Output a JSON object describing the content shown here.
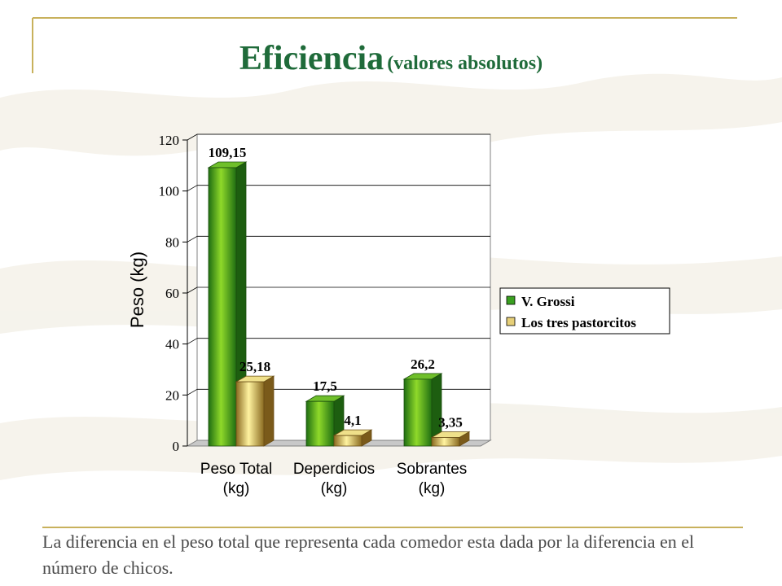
{
  "slide": {
    "title": "Eficiencia",
    "subtitle": "(valores absolutos)",
    "caption": "La diferencia en el peso total que representa cada comedor esta dada por la diferencia en el número de chicos."
  },
  "colors": {
    "title": "#1f6b3a",
    "frame_line": "#c8b15c",
    "series_1": "#2f9a1f",
    "series_2": "#d9c060"
  },
  "chart_data": {
    "type": "bar",
    "title": "",
    "xlabel": "",
    "ylabel": "Peso (kg)",
    "ylim": [
      0,
      120
    ],
    "yticks": [
      0,
      20,
      40,
      60,
      80,
      100,
      120
    ],
    "grid": true,
    "legend": "right",
    "categories": [
      [
        "Peso Total",
        "(kg)"
      ],
      [
        "Deperdicios",
        "(kg)"
      ],
      [
        "Sobrantes",
        "(kg)"
      ]
    ],
    "series": [
      {
        "name": "V. Grossi",
        "values": [
          109.15,
          17.5,
          26.2
        ],
        "labels": [
          "109,15",
          "17,5",
          "26,2"
        ]
      },
      {
        "name": "Los tres pastorcitos",
        "values": [
          25.18,
          4.1,
          3.35
        ],
        "labels": [
          "25,18",
          "4,1",
          "3,35"
        ]
      }
    ]
  }
}
